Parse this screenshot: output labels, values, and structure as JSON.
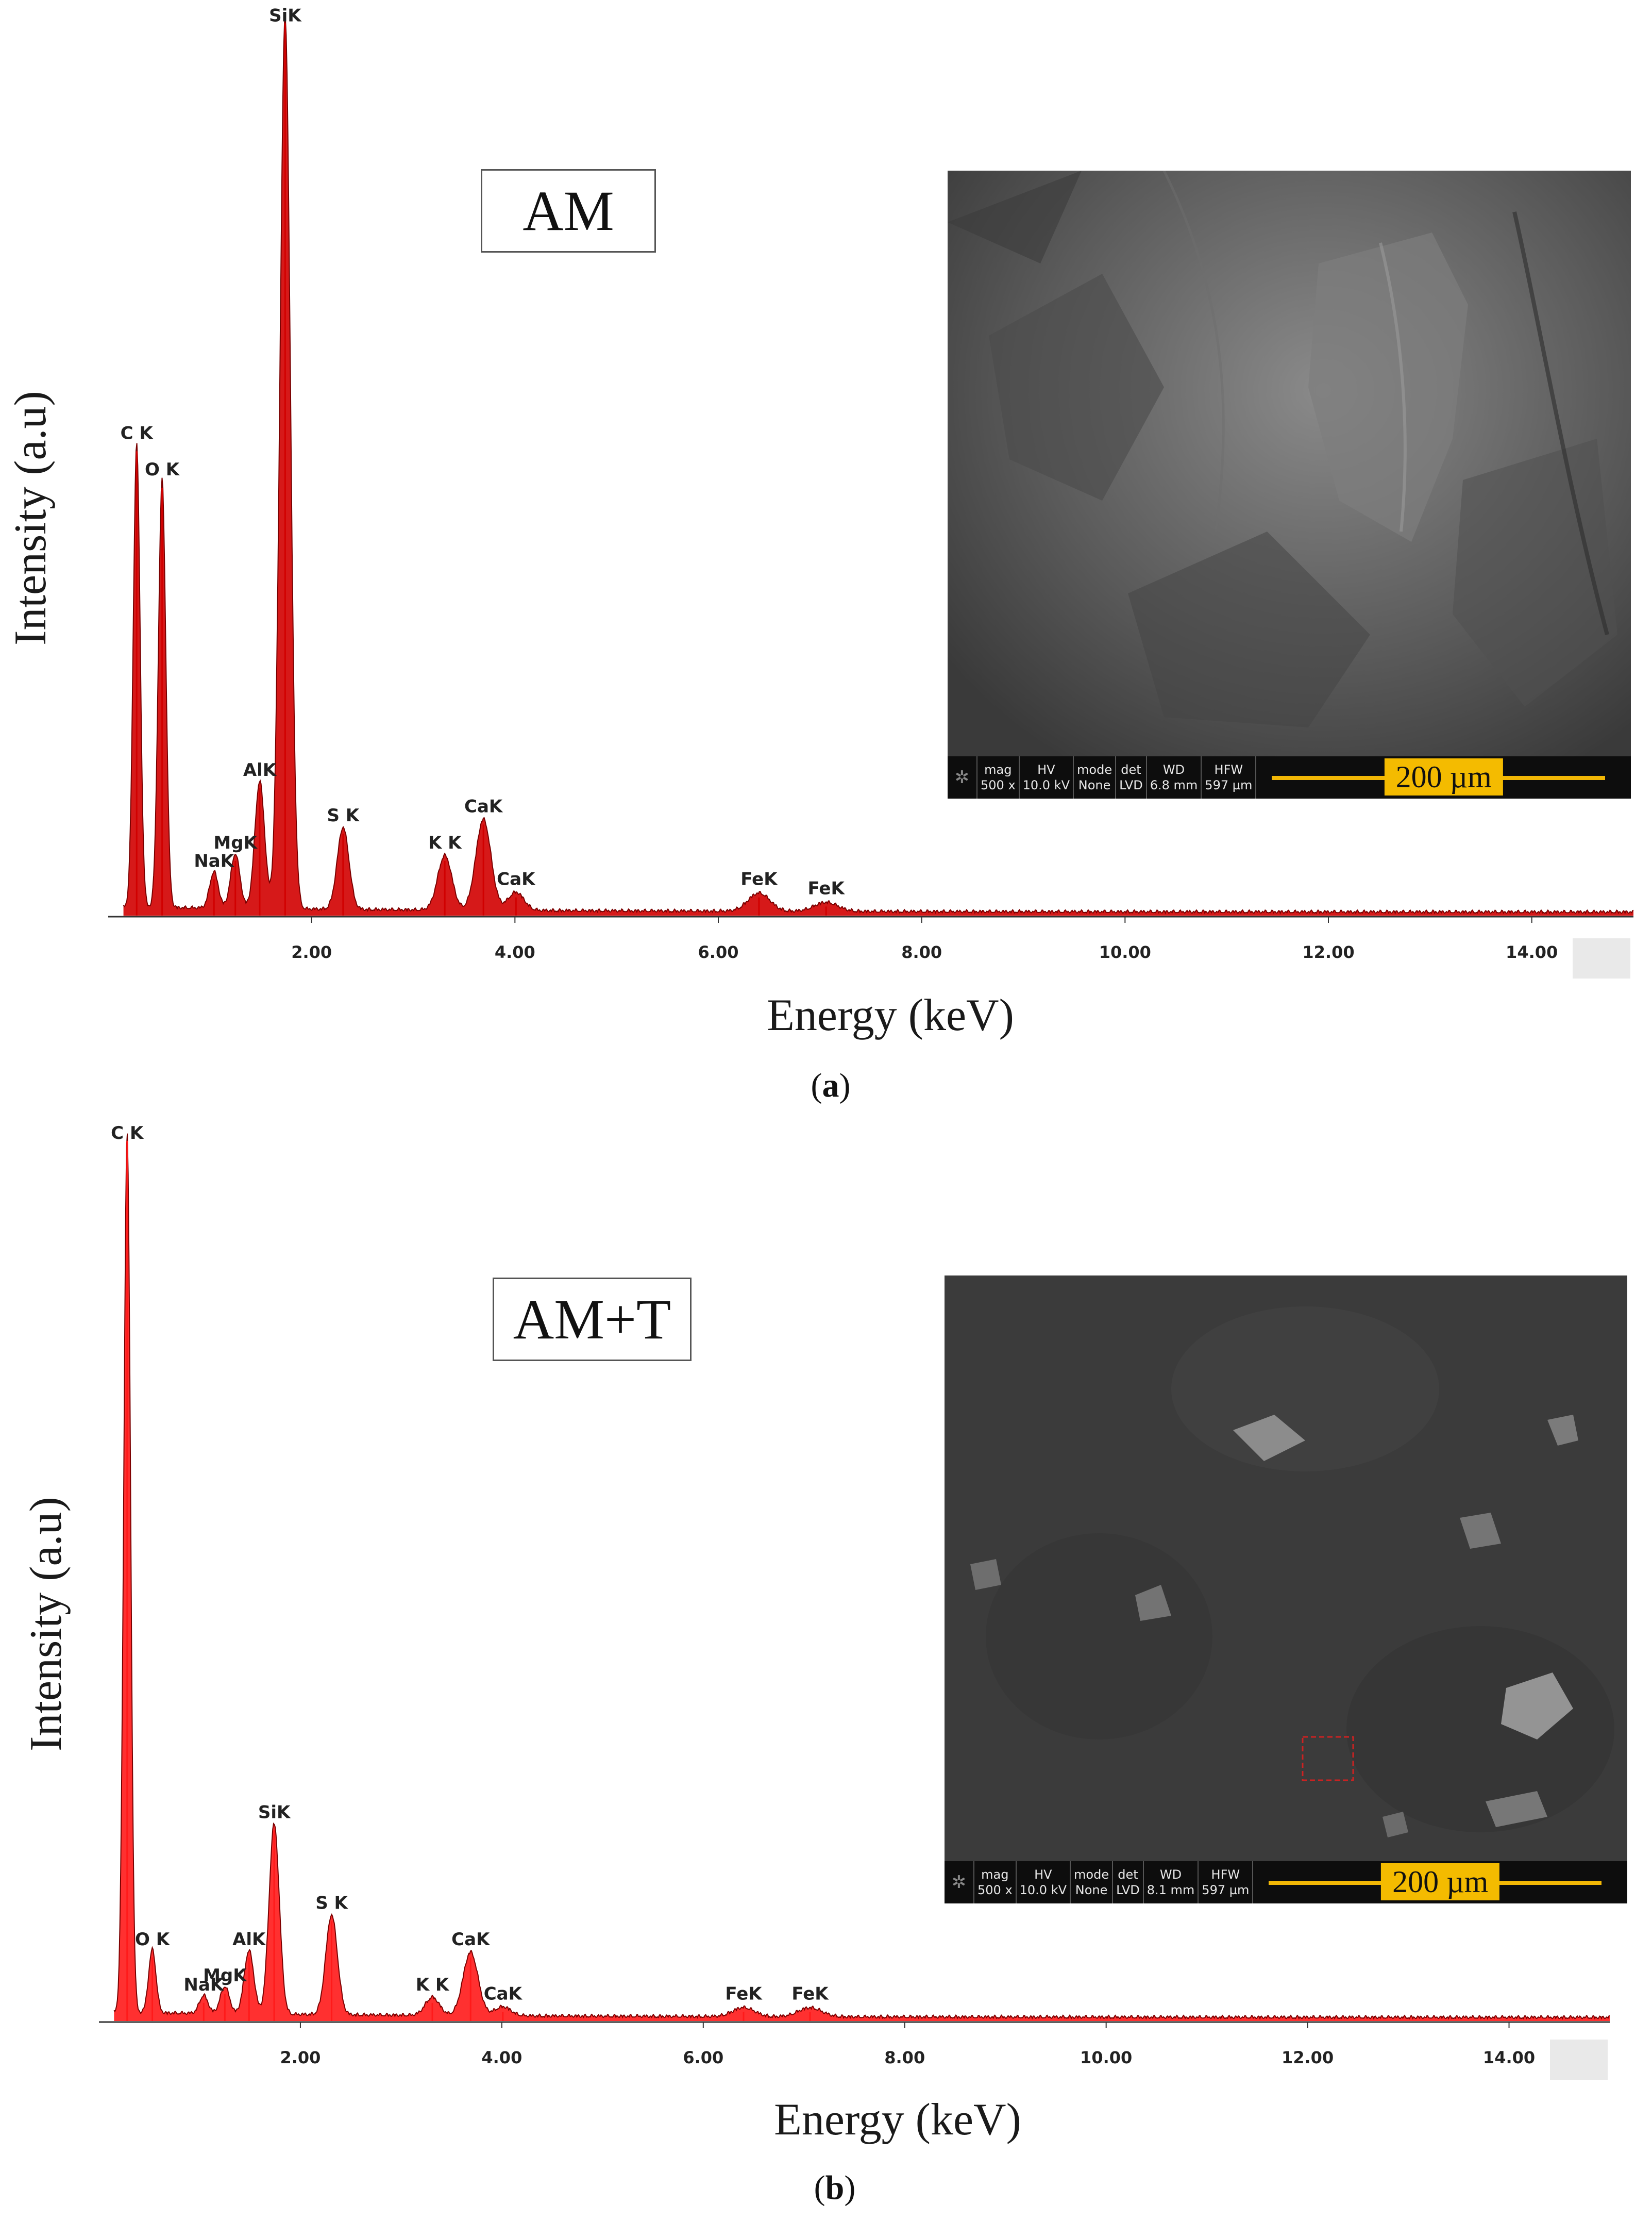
{
  "chart_data": [
    {
      "type": "line",
      "panel_label": "a",
      "sample_label": "AM",
      "xlabel": "Energy (keV)",
      "ylabel": "Intensity (a.u)",
      "xlim": [
        0,
        15
      ],
      "ylim": [
        0,
        100
      ],
      "x_ticks": [
        "2.00",
        "4.00",
        "6.00",
        "8.00",
        "10.00",
        "12.00",
        "14.00"
      ],
      "x_tick_values": [
        2,
        4,
        6,
        8,
        10,
        12,
        14
      ],
      "series": [
        {
          "color": "#d10000",
          "peaks": [
            {
              "label": "C K",
              "x": 0.28,
              "y": 51
            },
            {
              "label": "O K",
              "x": 0.53,
              "y": 47
            },
            {
              "label": "NaK",
              "x": 1.04,
              "y": 4
            },
            {
              "label": "MgK",
              "x": 1.25,
              "y": 6
            },
            {
              "label": "AlK",
              "x": 1.49,
              "y": 14
            },
            {
              "label": "SiK",
              "x": 1.74,
              "y": 98
            },
            {
              "label": "S K",
              "x": 2.31,
              "y": 9
            },
            {
              "label": "K K",
              "x": 3.31,
              "y": 6
            },
            {
              "label": "CaK",
              "x": 3.69,
              "y": 10
            },
            {
              "label": "CaK",
              "x": 4.01,
              "y": 2
            },
            {
              "label": "FeK",
              "x": 6.4,
              "y": 2
            },
            {
              "label": "FeK",
              "x": 7.06,
              "y": 1
            }
          ]
        }
      ],
      "sem_image": {
        "labels": [
          "mag",
          "HV",
          "mode",
          "det",
          "WD",
          "HFW"
        ],
        "values": [
          "500 x",
          "10.0 kV",
          "None",
          "LVD",
          "6.8 mm",
          "597 µm"
        ],
        "scale_bar": "200 µm"
      }
    },
    {
      "type": "line",
      "panel_label": "b",
      "sample_label": "AM+T",
      "xlabel": "Energy (keV)",
      "ylabel": "Intensity (a.u)",
      "xlim": [
        0,
        15
      ],
      "ylim": [
        0,
        100
      ],
      "x_ticks": [
        "2.00",
        "4.00",
        "6.00",
        "8.00",
        "10.00",
        "12.00",
        "14.00"
      ],
      "x_tick_values": [
        2,
        4,
        6,
        8,
        10,
        12,
        14
      ],
      "series": [
        {
          "color": "#ff1a1a",
          "peaks": [
            {
              "label": "C K",
              "x": 0.28,
              "y": 97
            },
            {
              "label": "O K",
              "x": 0.53,
              "y": 7
            },
            {
              "label": "NaK",
              "x": 1.04,
              "y": 2
            },
            {
              "label": "MgK",
              "x": 1.25,
              "y": 3
            },
            {
              "label": "AlK",
              "x": 1.49,
              "y": 7
            },
            {
              "label": "SiK",
              "x": 1.74,
              "y": 21
            },
            {
              "label": "S K",
              "x": 2.31,
              "y": 11
            },
            {
              "label": "K K",
              "x": 3.31,
              "y": 2
            },
            {
              "label": "CaK",
              "x": 3.69,
              "y": 7
            },
            {
              "label": "CaK",
              "x": 4.01,
              "y": 1
            },
            {
              "label": "FeK",
              "x": 6.4,
              "y": 1
            },
            {
              "label": "FeK",
              "x": 7.06,
              "y": 1
            }
          ]
        }
      ],
      "sem_image": {
        "labels": [
          "mag",
          "HV",
          "mode",
          "det",
          "WD",
          "HFW"
        ],
        "values": [
          "500 x",
          "10.0 kV",
          "None",
          "LVD",
          "8.1 mm",
          "597 µm"
        ],
        "scale_bar": "200 µm"
      }
    }
  ]
}
